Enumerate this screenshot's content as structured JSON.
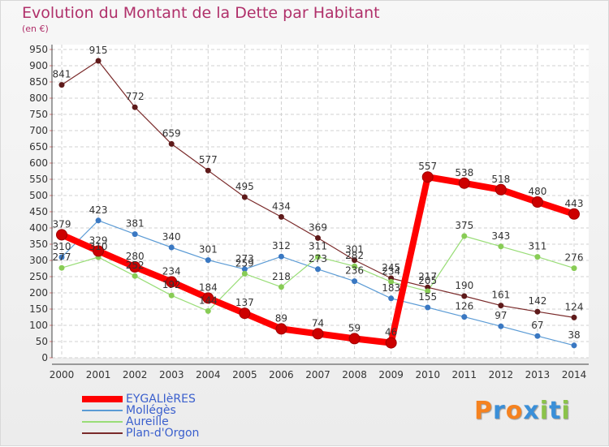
{
  "header": {
    "title": "Evolution du Montant de la Dette par Habitant",
    "subtitle": "(en €)"
  },
  "logo": {
    "letters": [
      "P",
      "r",
      "o",
      "x",
      "i",
      "t",
      "i"
    ],
    "colors": [
      "#f58220",
      "#3a8fd8",
      "#f58220",
      "#3a8fd8",
      "#8bc34a",
      "#3a8fd8",
      "#8bc34a"
    ]
  },
  "chart_data": {
    "type": "line",
    "x": [
      "2000",
      "2001",
      "2002",
      "2003",
      "2004",
      "2005",
      "2006",
      "2007",
      "2008",
      "2009",
      "2010",
      "2011",
      "2012",
      "2013",
      "2014"
    ],
    "ylim": [
      0,
      950
    ],
    "yticks": [
      "0",
      "50",
      "100",
      "150",
      "200",
      "250",
      "300",
      "350",
      "400",
      "450",
      "500",
      "550",
      "600",
      "650",
      "700",
      "750",
      "800",
      "850",
      "900",
      "950"
    ],
    "grid": true,
    "legend_position": "bottom-left",
    "series": [
      {
        "name": "EYGALIèRES",
        "color": "#ff0000",
        "marker": "#cc0000",
        "width": 8,
        "values": [
          379,
          329,
          280,
          234,
          184,
          137,
          89,
          74,
          59,
          46,
          557,
          538,
          518,
          480,
          443
        ],
        "labels": [
          "379",
          "329",
          "280",
          "234",
          "184",
          "137",
          "89",
          "74",
          "59",
          "46",
          "557",
          "538",
          "518",
          "480",
          "443"
        ]
      },
      {
        "name": "Mollégès",
        "color": "#5b9bd5",
        "marker": "#3a78c2",
        "width": 1.2,
        "values": [
          310,
          423,
          381,
          340,
          301,
          273,
          312,
          273,
          236,
          183,
          155,
          126,
          97,
          67,
          38
        ],
        "labels": [
          "310",
          "423",
          "381",
          "340",
          "301",
          "273",
          "312",
          "273",
          "236",
          "183",
          "155",
          "126",
          "97",
          "67",
          "38"
        ]
      },
      {
        "name": "Aureille",
        "color": "#99dd77",
        "marker": "#88cc55",
        "width": 1.2,
        "values": [
          277,
          310,
          252,
          192,
          144,
          259,
          218,
          311,
          282,
          234,
          205,
          375,
          343,
          311,
          276
        ],
        "labels": [
          "277",
          "310",
          "252",
          "192",
          "144",
          "259",
          "218",
          "311",
          "282",
          "234",
          "205",
          "375",
          "343",
          "311",
          "276"
        ]
      },
      {
        "name": "Plan-d'Orgon",
        "color": "#7a2a2a",
        "marker": "#5e1a1a",
        "width": 1.2,
        "values": [
          841,
          915,
          772,
          659,
          577,
          495,
          434,
          369,
          301,
          245,
          217,
          190,
          161,
          142,
          124
        ],
        "labels": [
          "841",
          "915",
          "772",
          "659",
          "577",
          "495",
          "434",
          "369",
          "301",
          "245",
          "217",
          "190",
          "161",
          "142",
          "124"
        ]
      }
    ]
  }
}
